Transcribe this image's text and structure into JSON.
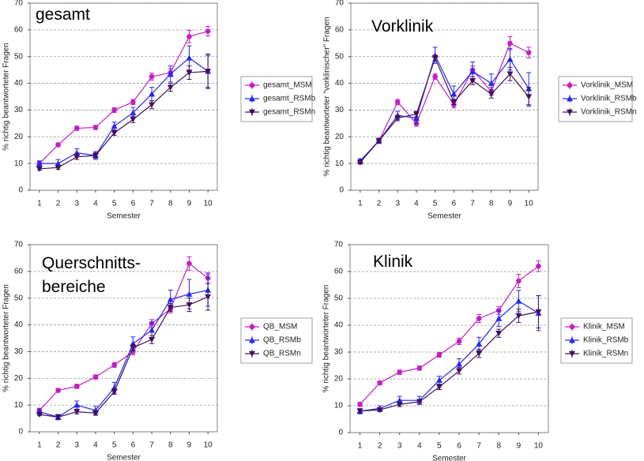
{
  "chart_data": [
    {
      "type": "line",
      "title": [
        "gesamt"
      ],
      "xlabel": "Semester",
      "ylabel": "% richtig beantworteter Fragen",
      "x": [
        1,
        2,
        3,
        4,
        5,
        6,
        7,
        8,
        9,
        10
      ],
      "xlim": [
        0.5,
        10.5
      ],
      "xticks": [
        1,
        2,
        3,
        4,
        5,
        6,
        7,
        8,
        9,
        10
      ],
      "ylim": [
        0,
        70
      ],
      "yticks": [
        0,
        10,
        20,
        30,
        40,
        50,
        60,
        70
      ],
      "grid": true,
      "series": [
        {
          "name": "gesamt_MSM",
          "color": "#c41fc4",
          "marker": "circle",
          "values": [
            10,
            17,
            23.2,
            23.5,
            30,
            33,
            42.5,
            44,
            57.5,
            59.5
          ],
          "errors": [
            0.8,
            0.7,
            0.8,
            0.8,
            0.9,
            1,
            1.3,
            1.5,
            2.3,
            1.8
          ]
        },
        {
          "name": "gesamt_RSMb",
          "color": "#2727f0",
          "marker": "triangle-up",
          "values": [
            10,
            10,
            14,
            13,
            24,
            29,
            36,
            43.5,
            49.5,
            44.5
          ],
          "errors": [
            1,
            1.5,
            1.5,
            1.5,
            1.5,
            2,
            2.5,
            3,
            4.5,
            6.5
          ]
        },
        {
          "name": "gesamt_RSMn",
          "color": "#40115c",
          "marker": "triangle-down",
          "values": [
            8,
            8.5,
            12.5,
            13,
            21.5,
            26.5,
            32,
            38.5,
            44,
            44.5
          ],
          "errors": [
            0.5,
            0.7,
            1,
            1,
            1,
            1.2,
            1.5,
            1.5,
            2.5,
            6
          ]
        }
      ]
    },
    {
      "type": "line",
      "title": [
        "Vorklinik"
      ],
      "xlabel": "Semester",
      "ylabel": "% richtig beantworteter \"vorklinischer\" Fragen",
      "x": [
        1,
        2,
        3,
        4,
        5,
        6,
        7,
        8,
        9,
        10
      ],
      "xlim": [
        0.5,
        10.5
      ],
      "xticks": [
        1,
        2,
        3,
        4,
        5,
        6,
        7,
        8,
        9,
        10
      ],
      "ylim": [
        0,
        70
      ],
      "yticks": [
        0,
        10,
        20,
        30,
        40,
        50,
        60,
        70
      ],
      "grid": true,
      "series": [
        {
          "name": "Vorklinik_MSM",
          "color": "#c41fc4",
          "marker": "circle",
          "values": [
            10.5,
            18.5,
            33,
            25,
            42.5,
            32,
            45,
            37,
            55,
            51.5
          ],
          "errors": [
            0.8,
            0.8,
            1,
            1,
            1,
            1.2,
            1.5,
            1.5,
            2.5,
            2
          ]
        },
        {
          "name": "Vorklinik_RSMb",
          "color": "#2727f0",
          "marker": "triangle-up",
          "values": [
            11,
            18.5,
            28,
            27,
            50.5,
            36,
            44.5,
            40,
            49,
            38
          ],
          "errors": [
            0.8,
            1,
            1.5,
            2,
            3,
            3,
            3.5,
            3.5,
            4,
            6
          ]
        },
        {
          "name": "Vorklinik_RSMn",
          "color": "#40115c",
          "marker": "triangle-down",
          "values": [
            10.5,
            18.5,
            27,
            28.5,
            49.5,
            33,
            41,
            36,
            43.5,
            35
          ],
          "errors": [
            0.5,
            0.8,
            1,
            1,
            1,
            1,
            1.5,
            1.5,
            2.5,
            3.5
          ]
        }
      ]
    },
    {
      "type": "line",
      "title": [
        "Querschnitts-",
        "bereiche"
      ],
      "xlabel": "Semester",
      "ylabel": "% richtig beantworteter Fragen",
      "x": [
        1,
        2,
        3,
        4,
        5,
        6,
        7,
        8,
        9,
        10
      ],
      "xlim": [
        0.5,
        10.5
      ],
      "xticks": [
        1,
        2,
        3,
        4,
        5,
        6,
        7,
        8,
        9,
        10
      ],
      "ylim": [
        0,
        70
      ],
      "yticks": [
        0,
        10,
        20,
        30,
        40,
        50,
        60,
        70
      ],
      "grid": true,
      "series": [
        {
          "name": "QB_MSM",
          "color": "#c41fc4",
          "marker": "circle",
          "values": [
            8,
            15.5,
            17,
            20.5,
            25,
            30,
            40.5,
            46,
            63,
            57.5
          ],
          "errors": [
            0.8,
            0.7,
            0.8,
            0.8,
            0.9,
            1.2,
            1.5,
            1.5,
            2.5,
            2
          ]
        },
        {
          "name": "QB_RSMb",
          "color": "#2727f0",
          "marker": "triangle-up",
          "values": [
            7.5,
            5.5,
            10,
            8,
            16.5,
            33,
            38,
            49.5,
            51.5,
            53
          ],
          "errors": [
            1,
            1,
            1.5,
            1.5,
            2,
            2.5,
            3,
            3.5,
            5.5,
            6
          ]
        },
        {
          "name": "QB_RSMn",
          "color": "#40115c",
          "marker": "triangle-down",
          "values": [
            6.5,
            5.5,
            7.5,
            7,
            15,
            31.5,
            34.5,
            46.5,
            47.5,
            50.5
          ],
          "errors": [
            0.5,
            0.7,
            0.8,
            0.8,
            1,
            1.2,
            1.5,
            1.5,
            2.5,
            5
          ]
        }
      ]
    },
    {
      "type": "line",
      "title": [
        "Klinik"
      ],
      "xlabel": "Semester",
      "ylabel": "% richtig beantworteter Fragen",
      "x": [
        1,
        2,
        3,
        4,
        5,
        6,
        7,
        8,
        9,
        10
      ],
      "xlim": [
        0.5,
        10.5
      ],
      "xticks": [
        1,
        2,
        3,
        4,
        5,
        6,
        7,
        8,
        9,
        10
      ],
      "ylim": [
        0,
        70
      ],
      "yticks": [
        0,
        10,
        20,
        30,
        40,
        50,
        60,
        70
      ],
      "grid": true,
      "series": [
        {
          "name": "Klinik_MSM",
          "color": "#c41fc4",
          "marker": "circle",
          "values": [
            10.5,
            18.5,
            22.5,
            24,
            29,
            34,
            42.5,
            45.5,
            56.5,
            62
          ],
          "errors": [
            0.8,
            0.7,
            0.8,
            0.8,
            0.9,
            1.2,
            1.5,
            1.5,
            2.5,
            2
          ]
        },
        {
          "name": "Klinik_RSMb",
          "color": "#2727f0",
          "marker": "triangle-up",
          "values": [
            8,
            9,
            12,
            12,
            19.5,
            25.5,
            33,
            42.5,
            49,
            44.5
          ],
          "errors": [
            1,
            1,
            1.5,
            1.5,
            1.5,
            2,
            2.5,
            3,
            4,
            6.5
          ]
        },
        {
          "name": "Klinik_RSMn",
          "color": "#40115c",
          "marker": "triangle-down",
          "values": [
            8,
            8.5,
            10.5,
            11.5,
            17,
            23,
            29.5,
            37,
            43.5,
            45
          ],
          "errors": [
            0.5,
            0.7,
            0.8,
            0.8,
            1,
            1.2,
            1.5,
            1.5,
            2.5,
            6
          ]
        }
      ]
    }
  ]
}
